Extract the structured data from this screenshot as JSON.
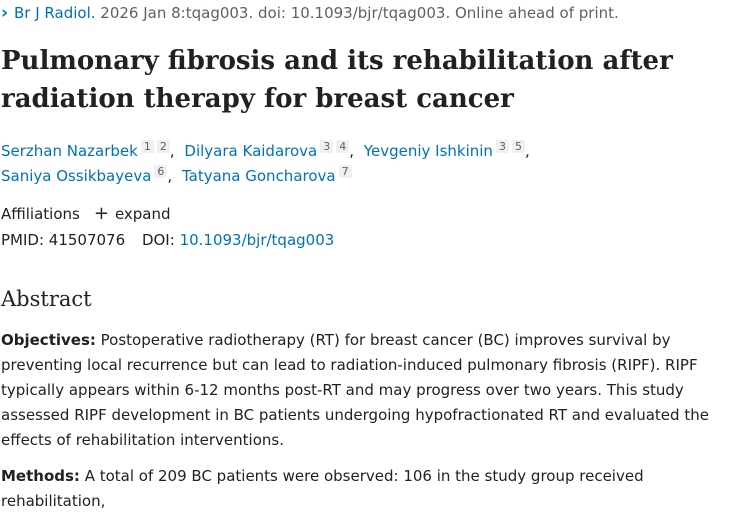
{
  "citation": {
    "chevron": "›",
    "journal": "Br J Radiol.",
    "details": " 2026 Jan 8:tqag003. doi: 10.1093/bjr/tqag003. Online ahead of print."
  },
  "title": "Pulmonary fibrosis and its rehabilitation after radiation therapy for breast cancer",
  "authors": {
    "separator": ",",
    "list": [
      {
        "name": "Serzhan Nazarbek",
        "affiliations": [
          "1",
          "2"
        ]
      },
      {
        "name": "Dilyara Kaidarova",
        "affiliations": [
          "3",
          "4"
        ]
      },
      {
        "name": "Yevgeniy Ishkinin",
        "affiliations": [
          "3",
          "5"
        ]
      },
      {
        "name": "Saniya Ossikbayeva",
        "affiliations": [
          "6"
        ]
      },
      {
        "name": "Tatyana Goncharova",
        "affiliations": [
          "7"
        ]
      }
    ]
  },
  "affiliations": {
    "label": "Affiliations",
    "icon": "+",
    "toggle": "expand"
  },
  "identifiers": {
    "pmid_label": "PMID:",
    "pmid": "41507076",
    "doi_label": "DOI:",
    "doi": "10.1093/bjr/tqag003"
  },
  "abstract": {
    "heading": "Abstract",
    "sections": [
      {
        "label": "Objectives:",
        "text": " Postoperative radiotherapy (RT) for breast cancer (BC) improves survival by preventing local recurrence but can lead to radiation-induced pulmonary fibrosis (RIPF). RIPF typically appears within 6-12 months post-RT and may progress over two years. This study assessed RIPF development in BC patients undergoing hypofractionated RT and evaluated the effects of rehabilitation interventions."
      },
      {
        "label": "Methods:",
        "text": " A total of 209 BC patients were observed: 106 in the study group received rehabilitation,"
      }
    ]
  }
}
